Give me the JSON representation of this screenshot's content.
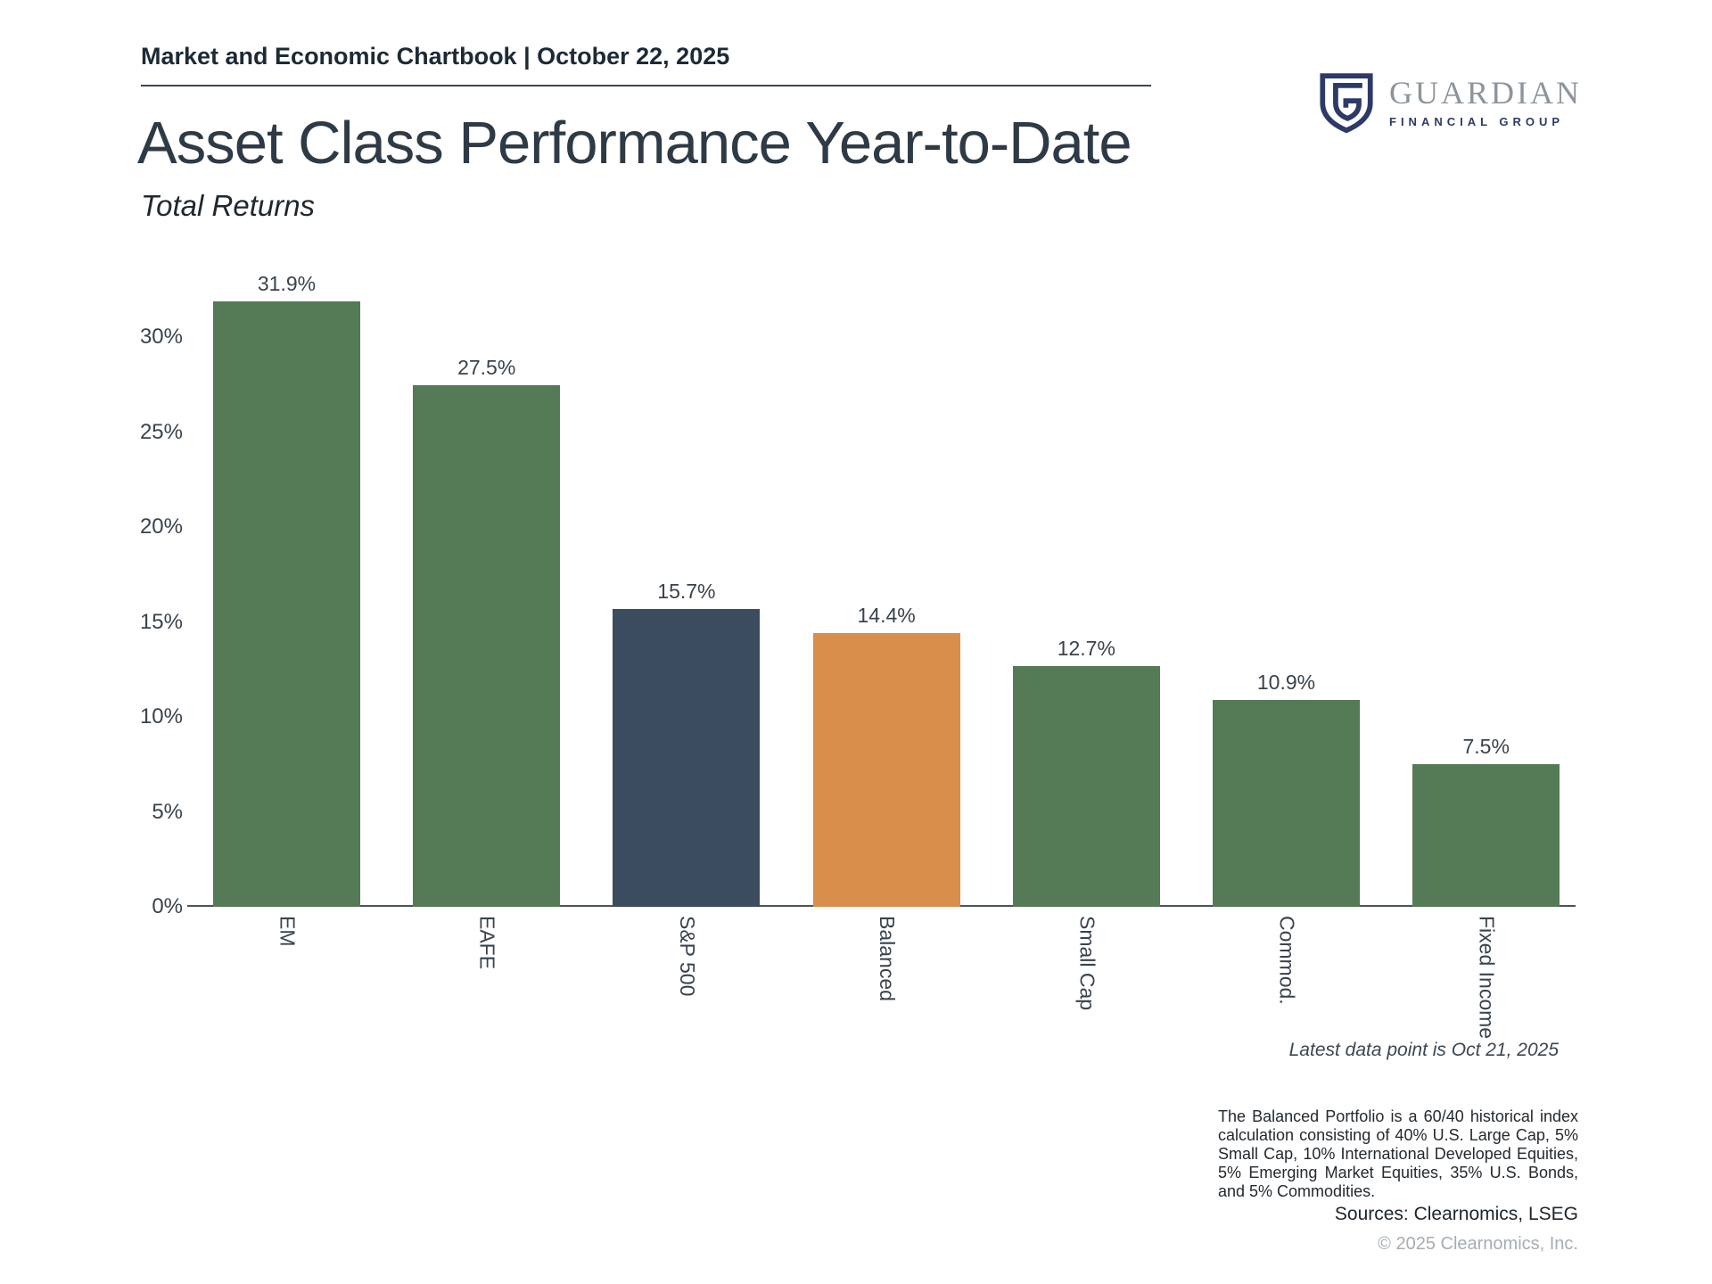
{
  "header": {
    "chartbook_label": "Market and Economic Chartbook | October 22, 2025"
  },
  "logo": {
    "name": "GUARDIAN",
    "tagline": "FINANCIAL GROUP"
  },
  "title": "Asset Class Performance Year-to-Date",
  "subtitle": "Total Returns",
  "chart_data": {
    "type": "bar",
    "title": "Asset Class Performance Year-to-Date",
    "subtitle": "Total Returns",
    "categories": [
      "EM",
      "EAFE",
      "S&P 500",
      "Balanced",
      "Small Cap",
      "Commod.",
      "Fixed Income"
    ],
    "values": [
      31.9,
      27.5,
      15.7,
      14.4,
      12.7,
      10.9,
      7.5
    ],
    "value_labels": [
      "31.9%",
      "27.5%",
      "15.7%",
      "14.4%",
      "12.7%",
      "10.9%",
      "7.5%"
    ],
    "bar_colors": [
      "#547a56",
      "#547a56",
      "#3b4c5e",
      "#d78f4b",
      "#547a56",
      "#547a56",
      "#547a56"
    ],
    "xlabel": "",
    "ylabel": "",
    "ylim": [
      0,
      33
    ],
    "ytick_values": [
      0,
      5,
      10,
      15,
      20,
      25,
      30
    ],
    "yticks": [
      "0%",
      "5%",
      "10%",
      "15%",
      "20%",
      "25%",
      "30%"
    ],
    "grid": false,
    "legend": "none",
    "note": "Latest data point is Oct 21, 2025"
  },
  "footnote": "The Balanced Portfolio is a 60/40 historical index calculation consisting of 40% U.S. Large Cap, 5% Small Cap, 10% International Developed Equities, 5% Emerging Market Equities, 35% U.S. Bonds, and 5% Commodities.",
  "sources": "Sources: Clearnomics, LSEG",
  "copyright": "© 2025 Clearnomics, Inc.",
  "colors": {
    "bar_green": "#547a56",
    "bar_navy": "#3b4c5e",
    "bar_orange": "#d78f4b",
    "axis": "#4b545d",
    "text_dark": "#2e3a45",
    "logo_navy": "#2d3a68",
    "logo_gray": "#8c959c"
  }
}
